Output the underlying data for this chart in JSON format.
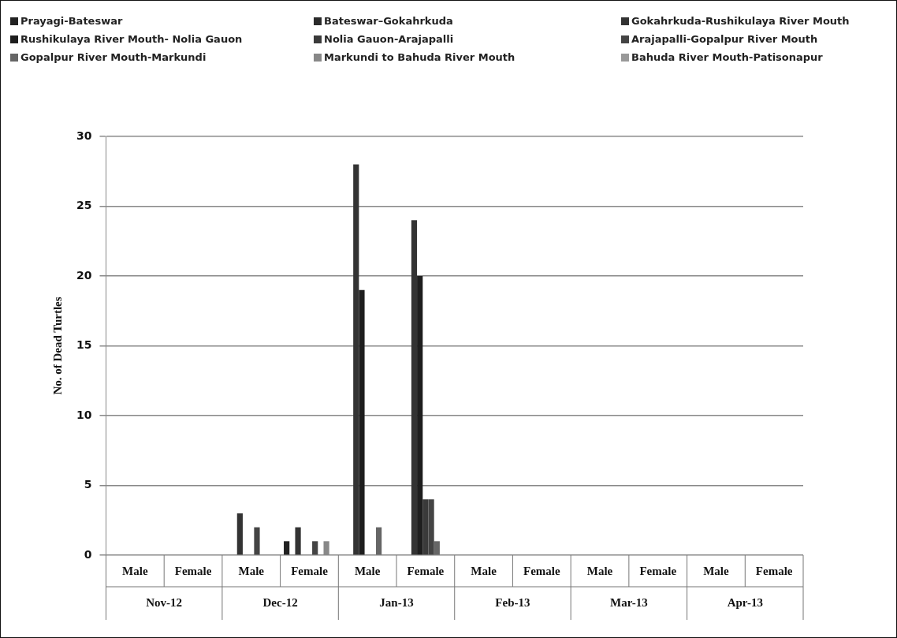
{
  "chart_data": {
    "type": "bar",
    "ylabel": "No. of Dead Turtles",
    "categories": [
      "Male",
      "Female",
      "Male",
      "Female",
      "Male",
      "Female",
      "Male",
      "Female",
      "Male",
      "Female",
      "Male",
      "Female"
    ],
    "annotations": [
      "Nov-12",
      "Dec-12",
      "Jan-13",
      "Feb-13",
      "Mar-13",
      "Apr-13"
    ],
    "series": [
      {
        "name": "Prayagi-Bateswar",
        "color": "#222222",
        "values": [
          0,
          0,
          0,
          1,
          0,
          0,
          0,
          0,
          0,
          0,
          0,
          0
        ]
      },
      {
        "name": "Bateswar–Gokahrkuda",
        "color": "#2a2a2a",
        "values": [
          0,
          0,
          0,
          0,
          0,
          0,
          0,
          0,
          0,
          0,
          0,
          0
        ]
      },
      {
        "name": "Gokahrkuda-Rushikulaya  River Mouth",
        "color": "#333333",
        "values": [
          0,
          0,
          3,
          2,
          28,
          24,
          0,
          0,
          0,
          0,
          0,
          0
        ]
      },
      {
        "name": "Rushikulaya River Mouth- Nolia Gauon",
        "color": "#1e1e1e",
        "values": [
          0,
          0,
          0,
          0,
          19,
          20,
          0,
          0,
          0,
          0,
          0,
          0
        ]
      },
      {
        "name": "Nolia Gauon-Arajapalli",
        "color": "#3a3a3a",
        "values": [
          0,
          0,
          0,
          0,
          0,
          4,
          0,
          0,
          0,
          0,
          0,
          0
        ]
      },
      {
        "name": "Arajapalli-Gopalpur River Mouth",
        "color": "#444444",
        "values": [
          0,
          0,
          2,
          1,
          0,
          4,
          0,
          0,
          0,
          0,
          0,
          0
        ]
      },
      {
        "name": "Gopalpur River Mouth-Markundi",
        "color": "#666666",
        "values": [
          0,
          0,
          0,
          0,
          2,
          1,
          0,
          0,
          0,
          0,
          0,
          0
        ]
      },
      {
        "name": "Markundi to Bahuda River Mouth",
        "color": "#888888",
        "values": [
          0,
          0,
          0,
          1,
          0,
          0,
          0,
          0,
          0,
          0,
          0,
          0
        ]
      },
      {
        "name": "Bahuda River Mouth-Patisonapur",
        "color": "#999999",
        "values": [
          0,
          0,
          0,
          0,
          0,
          0,
          0,
          0,
          0,
          0,
          0,
          0
        ]
      }
    ],
    "ylim": [
      0,
      30
    ],
    "yticks": [
      0,
      5,
      10,
      15,
      20,
      25,
      30
    ],
    "grid": "y",
    "legend": "top"
  }
}
